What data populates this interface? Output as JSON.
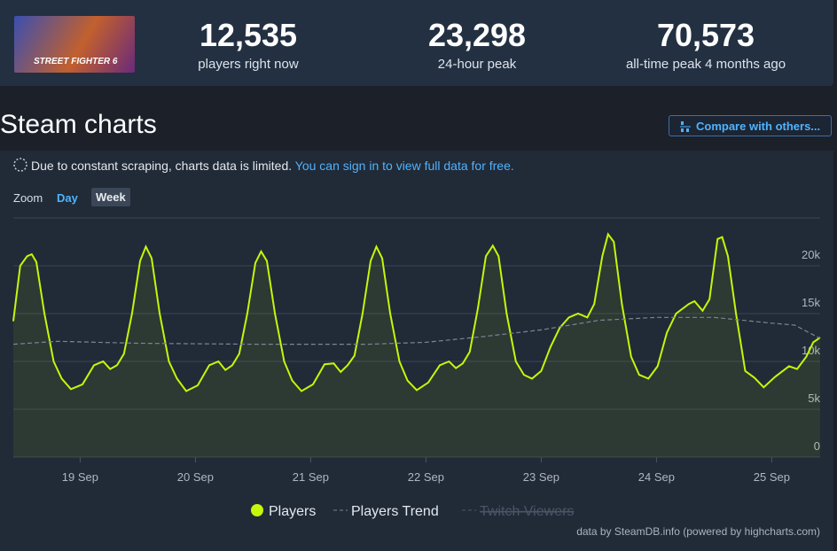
{
  "header": {
    "image_text": "STREET FIGHTER 6",
    "stats": [
      {
        "value": "12,535",
        "label": "players right now"
      },
      {
        "value": "23,298",
        "label": "24-hour peak"
      },
      {
        "value": "70,573",
        "label": "all-time peak 4 months ago"
      }
    ]
  },
  "section_title": "Steam charts",
  "compare_button": "Compare with others...",
  "notice": {
    "text": "Due to constant scraping, charts data is limited.",
    "link": "You can sign in to view full data for free."
  },
  "zoom": {
    "label": "Zoom",
    "options": [
      "Day",
      "Week"
    ]
  },
  "chart_data": {
    "type": "line",
    "xlim": [
      18.42,
      25.42
    ],
    "xticks": [
      {
        "value": 19,
        "label": "19 Sep"
      },
      {
        "value": 20,
        "label": "20 Sep"
      },
      {
        "value": 21,
        "label": "21 Sep"
      },
      {
        "value": 22,
        "label": "22 Sep"
      },
      {
        "value": 23,
        "label": "23 Sep"
      },
      {
        "value": 24,
        "label": "24 Sep"
      },
      {
        "value": 25,
        "label": "25 Sep"
      }
    ],
    "ylim": [
      0,
      25000
    ],
    "yticks": [
      0,
      {
        "value": 5000,
        "label": "5k"
      },
      {
        "value": 10000,
        "label": "10k"
      },
      {
        "value": 15000,
        "label": "15k"
      },
      {
        "value": 20000,
        "label": "20k"
      }
    ],
    "grid": true,
    "series": [
      {
        "name": "Players",
        "color": "#c4f70a",
        "x": [
          18.42,
          18.48,
          18.54,
          18.58,
          18.62,
          18.69,
          18.77,
          18.84,
          18.92,
          19.02,
          19.12,
          19.2,
          19.26,
          19.32,
          19.38,
          19.45,
          19.52,
          19.57,
          19.62,
          19.69,
          19.77,
          19.84,
          19.92,
          20.02,
          20.12,
          20.2,
          20.26,
          20.32,
          20.38,
          20.45,
          20.52,
          20.57,
          20.62,
          20.69,
          20.77,
          20.84,
          20.92,
          21.02,
          21.12,
          21.2,
          21.26,
          21.32,
          21.38,
          21.45,
          21.52,
          21.57,
          21.62,
          21.69,
          21.77,
          21.84,
          21.92,
          22.02,
          22.12,
          22.2,
          22.26,
          22.32,
          22.38,
          22.45,
          22.52,
          22.58,
          22.63,
          22.7,
          22.78,
          22.85,
          22.92,
          23.0,
          23.08,
          23.16,
          23.24,
          23.32,
          23.4,
          23.46,
          23.53,
          23.58,
          23.63,
          23.7,
          23.78,
          23.85,
          23.93,
          24.01,
          24.09,
          24.17,
          24.28,
          24.33,
          24.4,
          24.46,
          24.53,
          24.57,
          24.62,
          24.69,
          24.77,
          24.85,
          24.93,
          25.03,
          25.15,
          25.22,
          25.3,
          25.36,
          25.42
        ],
        "values": [
          14200,
          20000,
          21000,
          21200,
          20400,
          15000,
          10000,
          8200,
          7100,
          7600,
          9600,
          10000,
          9200,
          9600,
          10800,
          15000,
          20500,
          22000,
          20800,
          15000,
          10000,
          8200,
          6900,
          7500,
          9600,
          10000,
          9100,
          9600,
          10800,
          15000,
          20300,
          21500,
          20500,
          15000,
          10000,
          8000,
          6900,
          7600,
          9700,
          9800,
          8900,
          9600,
          10600,
          15000,
          20500,
          22000,
          20800,
          15000,
          10000,
          8000,
          7000,
          7800,
          9600,
          10000,
          9300,
          9800,
          11000,
          15500,
          21000,
          22100,
          21000,
          15000,
          10000,
          8600,
          8200,
          9000,
          11500,
          13500,
          14600,
          15000,
          14600,
          16000,
          21000,
          23300,
          22500,
          16000,
          10500,
          8600,
          8200,
          9500,
          13000,
          15000,
          16000,
          16300,
          15300,
          16500,
          22800,
          23000,
          21000,
          15000,
          9000,
          8300,
          7300,
          8400,
          9500,
          9200,
          10500,
          12000,
          12500
        ]
      },
      {
        "name": "Players Trend",
        "color": "#7b8594",
        "x": [
          18.42,
          18.8,
          19.5,
          20.5,
          21.5,
          22.0,
          22.5,
          23.0,
          23.5,
          24.0,
          24.5,
          25.0,
          25.2,
          25.42
        ],
        "values": [
          11800,
          12100,
          11900,
          11800,
          11800,
          12000,
          12600,
          13300,
          14300,
          14600,
          14600,
          14000,
          13800,
          12400
        ]
      },
      {
        "name": "Twitch Viewers",
        "color": "#4a5566",
        "visible": false
      }
    ]
  },
  "credit": "data by SteamDB.info (powered by highcharts.com)"
}
